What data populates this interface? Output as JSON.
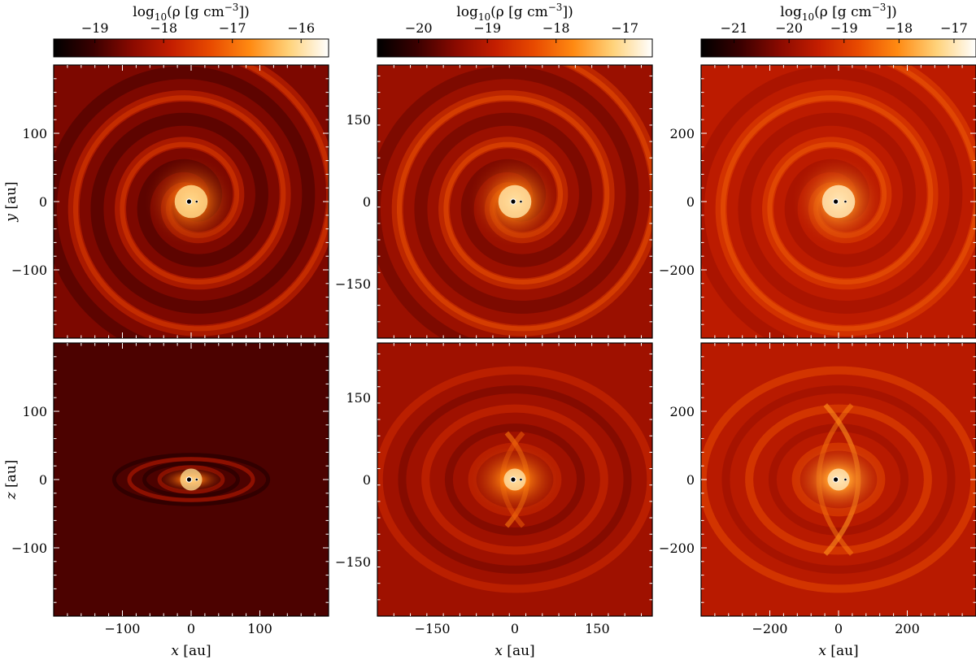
{
  "figure": {
    "colormap": [
      "#000000",
      "#3a0000",
      "#8a0a00",
      "#c41e00",
      "#e84a00",
      "#ff8a12",
      "#ffd27a",
      "#ffffff"
    ],
    "columns": [
      {
        "colorbar": {
          "label_prefix": "log",
          "label_sub": "10",
          "label_rest": "(ρ [g cm",
          "label_sup": "−3",
          "label_close": "])",
          "range": [
            -19.6,
            -15.6
          ],
          "ticks": [
            -19,
            -18,
            -17,
            -16
          ],
          "tick_labels": [
            "−19",
            "−18",
            "−17",
            "−16"
          ]
        },
        "axis_range": [
          -200,
          200
        ],
        "ticks": [
          -100,
          0,
          100
        ],
        "tick_labels": [
          "−100",
          "0",
          "100"
        ],
        "top": {
          "bg_value": -18.55,
          "core_value": -16.1,
          "spiral_value": -17.75
        },
        "bottom": {
          "bg_value": -18.9,
          "core_value": -16.1,
          "lobe_value": -17.9
        }
      },
      {
        "colorbar": {
          "label_prefix": "log",
          "label_sub": "10",
          "label_rest": "(ρ [g cm",
          "label_sup": "−3",
          "label_close": "])",
          "range": [
            -20.6,
            -16.6
          ],
          "ticks": [
            -20,
            -19,
            -18,
            -17
          ],
          "tick_labels": [
            "−20",
            "−19",
            "−18",
            "−17"
          ]
        },
        "axis_range": [
          -250,
          250
        ],
        "ticks": [
          -150,
          0,
          150
        ],
        "tick_labels": [
          "−150",
          "0",
          "150"
        ],
        "top": {
          "bg_value": -19.3,
          "core_value": -17.0,
          "spiral_value": -18.55
        },
        "bottom": {
          "bg_value": -19.25,
          "core_value": -17.0,
          "lobe_value": -18.7
        }
      },
      {
        "colorbar": {
          "label_prefix": "log",
          "label_sub": "10",
          "label_rest": "(ρ [g cm",
          "label_sup": "−3",
          "label_close": "])",
          "range": [
            -21.6,
            -16.6
          ],
          "ticks": [
            -21,
            -20,
            -19,
            -18,
            -17
          ],
          "tick_labels": [
            "−21",
            "−20",
            "−19",
            "−18",
            "−17"
          ]
        },
        "axis_range": [
          -400,
          400
        ],
        "ticks": [
          -200,
          0,
          200
        ],
        "tick_labels": [
          "−200",
          "0",
          "200"
        ],
        "top": {
          "bg_value": -19.55,
          "core_value": -17.0,
          "spiral_value": -18.85
        },
        "bottom": {
          "bg_value": -19.6,
          "core_value": -17.0,
          "lobe_value": -18.75
        }
      }
    ],
    "y_labels": {
      "top_var": "y",
      "bottom_var": "z",
      "unit": " [au]"
    },
    "x_label": {
      "var": "x",
      "unit": " [au]"
    }
  },
  "chart_data": [
    {
      "type": "heatmap",
      "panel": "top-left",
      "plane": "x-y",
      "xlabel": "",
      "ylabel": "y [au]",
      "xlim": [
        -200,
        200
      ],
      "ylim": [
        -200,
        200
      ],
      "colorbar_label": "log10(ρ [g cm−3])",
      "clim": [
        -19.6,
        -15.6
      ],
      "sinks": [
        {
          "x": -3,
          "y": 0
        },
        {
          "x": 8,
          "y": 0
        }
      ]
    },
    {
      "type": "heatmap",
      "panel": "top-middle",
      "plane": "x-y",
      "xlabel": "",
      "ylabel": "",
      "xlim": [
        -250,
        250
      ],
      "ylim": [
        -250,
        250
      ],
      "colorbar_label": "log10(ρ [g cm−3])",
      "clim": [
        -20.6,
        -16.6
      ],
      "sinks": [
        {
          "x": -3,
          "y": 0
        },
        {
          "x": 11,
          "y": 0
        }
      ]
    },
    {
      "type": "heatmap",
      "panel": "top-right",
      "plane": "x-y",
      "xlabel": "",
      "ylabel": "",
      "xlim": [
        -400,
        400
      ],
      "ylim": [
        -400,
        400
      ],
      "colorbar_label": "log10(ρ [g cm−3])",
      "clim": [
        -21.6,
        -16.6
      ],
      "sinks": [
        {
          "x": -8,
          "y": 0
        },
        {
          "x": 20,
          "y": 0
        }
      ]
    },
    {
      "type": "heatmap",
      "panel": "bottom-left",
      "plane": "x-z",
      "xlabel": "x [au]",
      "ylabel": "z [au]",
      "xlim": [
        -200,
        200
      ],
      "ylim": [
        -200,
        200
      ],
      "clim": [
        -19.6,
        -15.6
      ],
      "sinks": [
        {
          "x": -3,
          "z": 0
        },
        {
          "x": 8,
          "z": 0
        }
      ]
    },
    {
      "type": "heatmap",
      "panel": "bottom-middle",
      "plane": "x-z",
      "xlabel": "x [au]",
      "ylabel": "",
      "xlim": [
        -250,
        250
      ],
      "ylim": [
        -250,
        250
      ],
      "clim": [
        -20.6,
        -16.6
      ],
      "sinks": [
        {
          "x": -3,
          "z": 0
        },
        {
          "x": 11,
          "z": 0
        }
      ]
    },
    {
      "type": "heatmap",
      "panel": "bottom-right",
      "plane": "x-z",
      "xlabel": "x [au]",
      "ylabel": "",
      "xlim": [
        -400,
        400
      ],
      "ylim": [
        -400,
        400
      ],
      "clim": [
        -21.6,
        -16.6
      ],
      "sinks": [
        {
          "x": -8,
          "z": 0
        },
        {
          "x": 20,
          "z": 0
        }
      ]
    }
  ]
}
